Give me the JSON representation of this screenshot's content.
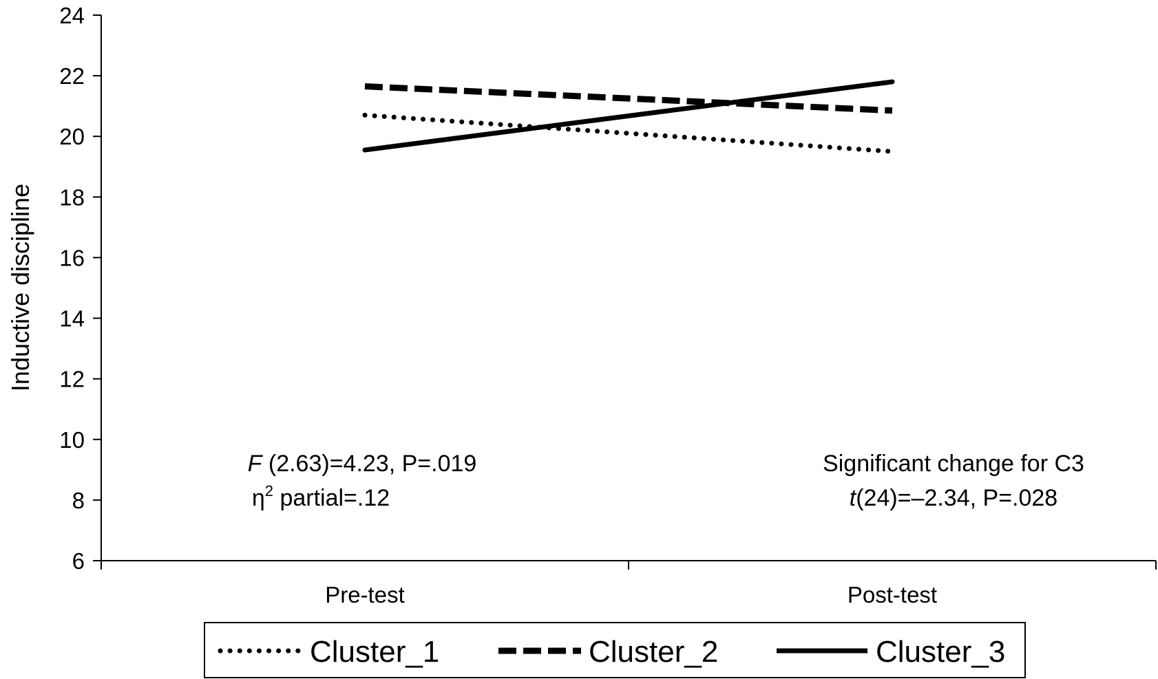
{
  "chart_data": {
    "type": "line",
    "title": "",
    "xlabel": "",
    "ylabel": "Inductive discipline",
    "categories": [
      "Pre-test",
      "Post-test"
    ],
    "ylim": [
      6,
      24
    ],
    "yticks": [
      "6",
      "8",
      "10",
      "12",
      "14",
      "16",
      "18",
      "20",
      "22",
      "24"
    ],
    "grid": false,
    "legend_position": "bottom",
    "series": [
      {
        "name": "Cluster_1",
        "values": [
          20.7,
          19.5
        ],
        "style": "dotted",
        "color": "#000000"
      },
      {
        "name": "Cluster_2",
        "values": [
          21.65,
          20.85
        ],
        "style": "dashed",
        "color": "#000000"
      },
      {
        "name": "Cluster_3",
        "values": [
          19.55,
          21.8
        ],
        "style": "solid",
        "color": "#000000"
      }
    ],
    "annotations": {
      "left_line1_italic": "F",
      "left_line1_rest": " (2.63)=4.23, P=.019",
      "left_line2_symbol": "η",
      "left_line2_sup": "2",
      "left_line2_rest": " partial=.12",
      "right_line1": "Significant change for C3",
      "right_line2_italic": "t",
      "right_line2_rest": "(24)=–2.34, P=.028"
    }
  }
}
